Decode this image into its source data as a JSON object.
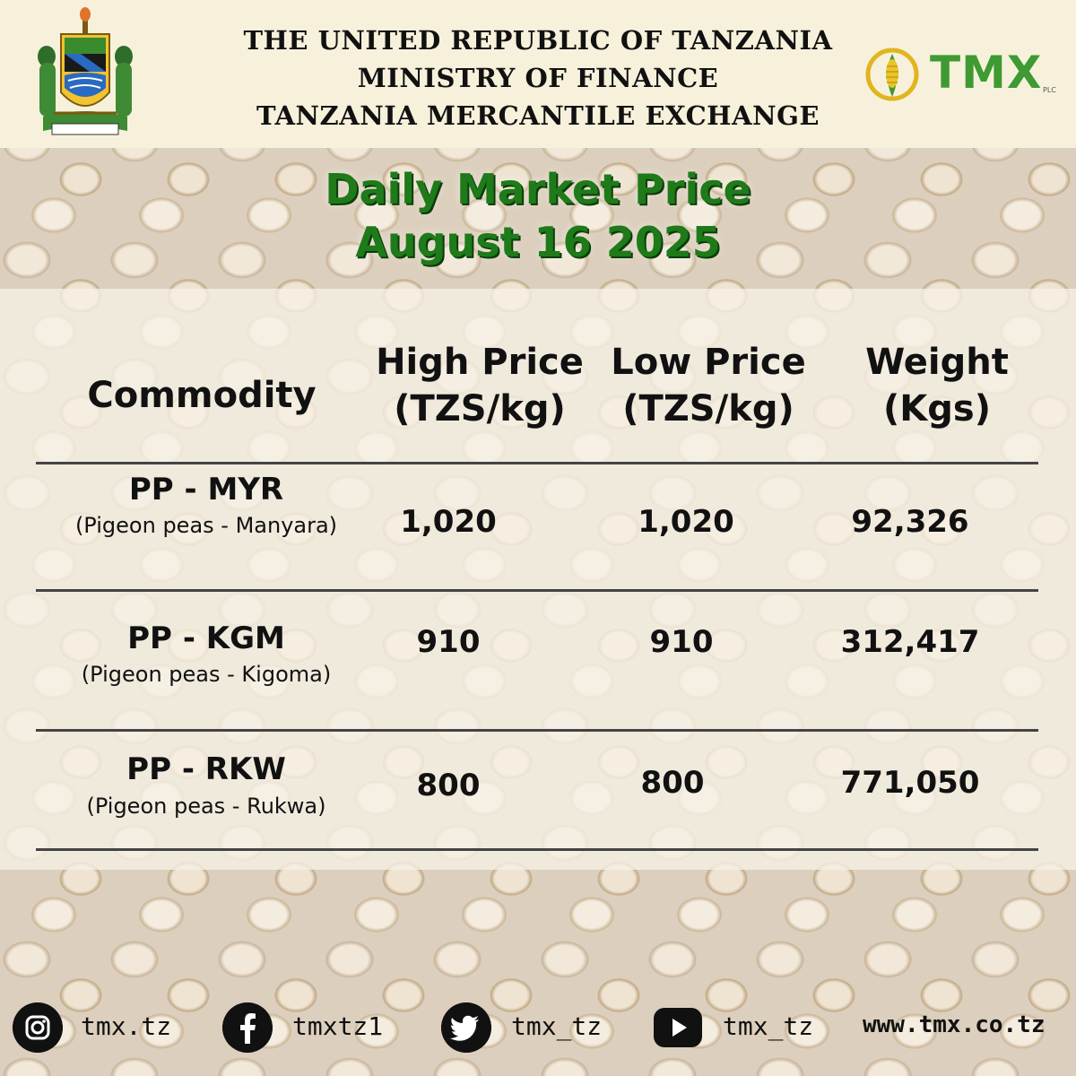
{
  "header": {
    "line1": "THE UNITED REPUBLIC OF TANZANIA",
    "line2": "MINISTRY OF FINANCE",
    "line3": "TANZANIA MERCANTILE EXCHANGE",
    "logo_text": "TMX",
    "logo_suffix": "PLC"
  },
  "title": {
    "line1": "Daily Market Price",
    "line2": "August 16 2025"
  },
  "table": {
    "headers": {
      "commodity": "Commodity",
      "high_line1": "High Price",
      "high_line2": "(TZS/kg)",
      "low_line1": "Low Price",
      "low_line2": "(TZS/kg)",
      "weight_line1": "Weight",
      "weight_line2": "(Kgs)"
    },
    "rows": [
      {
        "code": "PP - MYR",
        "name": "(Pigeon peas - Manyara)",
        "high": "1,020",
        "low": "1,020",
        "weight": "92,326"
      },
      {
        "code": "PP - KGM",
        "name": "(Pigeon peas - Kigoma)",
        "high": "910",
        "low": "910",
        "weight": "312,417"
      },
      {
        "code": "PP - RKW",
        "name": "(Pigeon peas - Rukwa)",
        "high": "800",
        "low": "800",
        "weight": "771,050"
      }
    ]
  },
  "footer": {
    "instagram": "tmx.tz",
    "facebook": "tmxtz1",
    "twitter": "tmx_tz",
    "youtube": "tmx_tz",
    "website": "www.tmx.co.tz"
  },
  "colors": {
    "title_green": "#1f7a1a",
    "logo_green": "#3e9a32",
    "header_bg": "#f7f1dc"
  },
  "icons": {
    "emblem": "coat-of-arms-icon",
    "instagram": "instagram-icon",
    "facebook": "facebook-icon",
    "twitter": "twitter-icon",
    "youtube": "youtube-icon",
    "logo": "maize-cob-icon"
  }
}
